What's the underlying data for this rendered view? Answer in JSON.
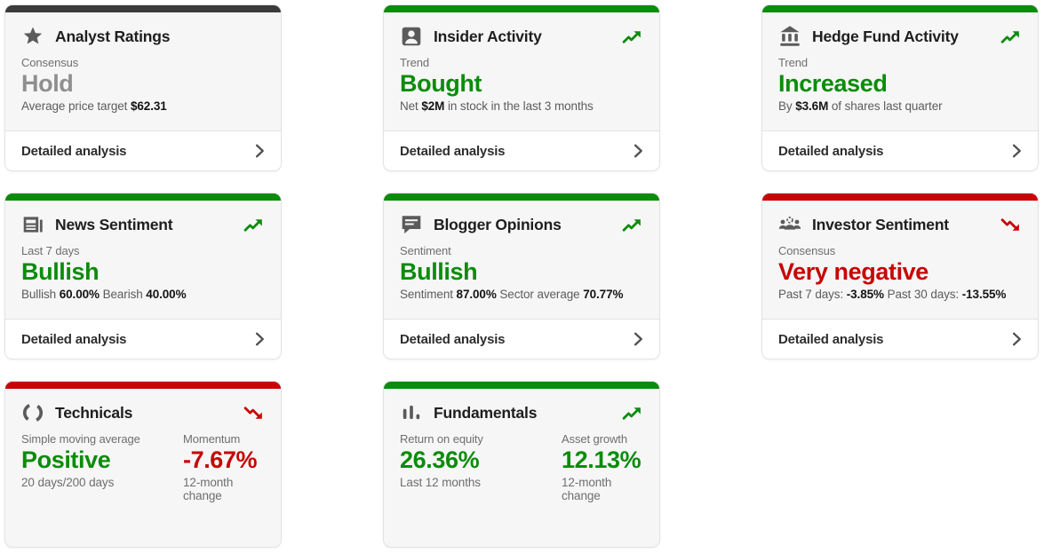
{
  "colors": {
    "green": "#0b8c0b",
    "red": "#c70505",
    "dark": "#3b3b3b",
    "gray": "#8f8f8f"
  },
  "footer_label": "Detailed analysis",
  "cards": [
    {
      "title": "Analyst Ratings",
      "icon": "star-icon",
      "accent": "dark",
      "trend": "none",
      "sections": [
        {
          "label": "Consensus",
          "value": "Hold",
          "value_color": "gray",
          "detail": [
            {
              "t": "Average price target ",
              "b": false
            },
            {
              "t": "$62.31",
              "b": true
            }
          ]
        }
      ],
      "has_footer": true
    },
    {
      "title": "Insider Activity",
      "icon": "person-badge-icon",
      "accent": "green",
      "trend": "up",
      "sections": [
        {
          "label": "Trend",
          "value": "Bought",
          "value_color": "green",
          "detail": [
            {
              "t": "Net ",
              "b": false
            },
            {
              "t": "$2M",
              "b": true
            },
            {
              "t": " in stock in the last 3 months",
              "b": false
            }
          ]
        }
      ],
      "has_footer": true
    },
    {
      "title": "Hedge Fund Activity",
      "icon": "bank-icon",
      "accent": "green",
      "trend": "up",
      "sections": [
        {
          "label": "Trend",
          "value": "Increased",
          "value_color": "green",
          "detail": [
            {
              "t": "By ",
              "b": false
            },
            {
              "t": "$3.6M",
              "b": true
            },
            {
              "t": " of shares last quarter",
              "b": false
            }
          ]
        }
      ],
      "has_footer": true
    },
    {
      "title": "News Sentiment",
      "icon": "newspaper-icon",
      "accent": "green",
      "trend": "up",
      "sections": [
        {
          "label": "Last 7 days",
          "value": "Bullish",
          "value_color": "green",
          "detail": [
            {
              "t": "Bullish ",
              "b": false
            },
            {
              "t": "60.00%",
              "b": true
            },
            {
              "t": " Bearish ",
              "b": false
            },
            {
              "t": "40.00%",
              "b": true
            }
          ]
        }
      ],
      "has_footer": true
    },
    {
      "title": "Blogger Opinions",
      "icon": "speech-bubble-icon",
      "accent": "green",
      "trend": "up",
      "sections": [
        {
          "label": "Sentiment",
          "value": "Bullish",
          "value_color": "green",
          "detail": [
            {
              "t": "Sentiment ",
              "b": false
            },
            {
              "t": "87.00%",
              "b": true
            },
            {
              "t": " Sector average ",
              "b": false
            },
            {
              "t": "70.77%",
              "b": true
            }
          ]
        }
      ],
      "has_footer": true
    },
    {
      "title": "Investor Sentiment",
      "icon": "people-group-icon",
      "accent": "red",
      "trend": "down",
      "sections": [
        {
          "label": "Consensus",
          "value": "Very negative",
          "value_color": "red",
          "detail": [
            {
              "t": "Past 7 days: ",
              "b": false
            },
            {
              "t": "-3.85%",
              "b": true
            },
            {
              "t": " Past 30 days: ",
              "b": false
            },
            {
              "t": "-13.55%",
              "b": true
            }
          ]
        }
      ],
      "has_footer": true
    },
    {
      "title": "Technicals",
      "icon": "gauge-circle-icon",
      "accent": "red",
      "trend": "down",
      "columns": [
        {
          "label": "Simple moving average",
          "value": "Positive",
          "value_color": "green",
          "sub": "20 days/200 days"
        },
        {
          "label": "Momentum",
          "value": "-7.67%",
          "value_color": "red",
          "sub": "12-month change"
        }
      ],
      "has_footer": false
    },
    {
      "title": "Fundamentals",
      "icon": "bar-chart-icon",
      "accent": "green",
      "trend": "up",
      "columns": [
        {
          "label": "Return on equity",
          "value": "26.36%",
          "value_color": "green",
          "sub": "Last 12 months"
        },
        {
          "label": "Asset growth",
          "value": "12.13%",
          "value_color": "green",
          "sub": "12-month change"
        }
      ],
      "has_footer": false
    }
  ]
}
